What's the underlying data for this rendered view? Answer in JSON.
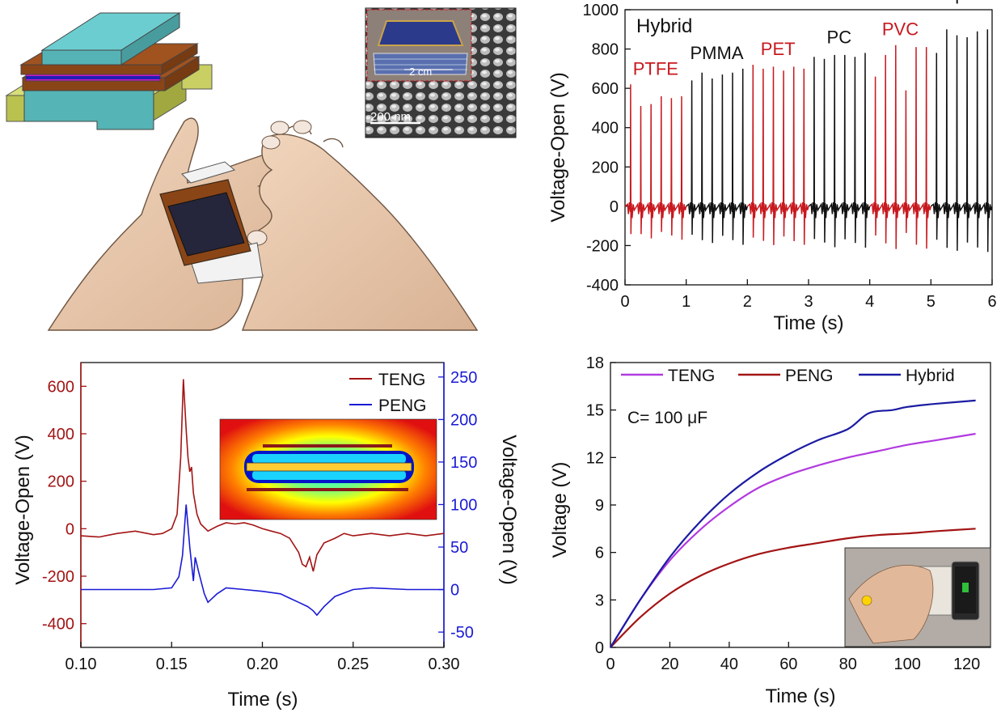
{
  "figure": "energy-harvester-composite",
  "colors": {
    "red": "#c8191f",
    "blue": "#1a1ad6",
    "black": "#111111",
    "purple": "#b23adf",
    "darkred": "#a31414",
    "navy": "#1b1ba3"
  },
  "illustration": {
    "sem_inset": {
      "scale_text": "200 nm",
      "photo_scale_text": "2 cm"
    }
  },
  "chart_data": [
    {
      "id": "hybrid-voltage",
      "type": "line",
      "title": "",
      "xlabel": "Time (s)",
      "ylabel": "Voltage-Open (V)",
      "xlim": [
        0,
        6
      ],
      "ylim": [
        -400,
        1000
      ],
      "xticks": [
        0,
        1,
        2,
        3,
        4,
        5,
        6
      ],
      "yticks": [
        -400,
        -200,
        0,
        200,
        400,
        600,
        800,
        1000
      ],
      "annotation": "Hybrid",
      "segments": [
        {
          "material": "PTFE",
          "color": "red",
          "start": 0.0,
          "end": 1.0,
          "peaks": [
            620,
            510,
            520,
            560,
            550,
            560
          ]
        },
        {
          "material": "PMMA",
          "color": "black",
          "start": 1.0,
          "end": 2.0,
          "peaks": [
            640,
            680,
            650,
            670,
            680,
            700
          ]
        },
        {
          "material": "PET",
          "color": "red",
          "start": 2.0,
          "end": 3.0,
          "peaks": [
            720,
            700,
            710,
            690,
            710,
            700
          ]
        },
        {
          "material": "PC",
          "color": "black",
          "start": 3.0,
          "end": 4.0,
          "peaks": [
            760,
            750,
            770,
            770,
            760,
            780
          ]
        },
        {
          "material": "PVC",
          "color": "red",
          "start": 4.0,
          "end": 5.0,
          "peaks": [
            660,
            770,
            820,
            590,
            810,
            810
          ]
        },
        {
          "material": "Kapton",
          "color": "black",
          "start": 5.0,
          "end": 6.0,
          "peaks": [
            780,
            900,
            870,
            860,
            890,
            900
          ]
        }
      ]
    },
    {
      "id": "teng-peng-dual-axis",
      "type": "line",
      "xlabel": "Time (s)",
      "ylabel_left": "Voltage-Open (V)",
      "ylabel_right": "Voltage-Open (V)",
      "xlim": [
        0.1,
        0.3
      ],
      "ylim_left": [
        -500,
        700
      ],
      "ylim_right": [
        -68,
        267
      ],
      "xticks": [
        "0.10",
        "0.15",
        "0.20",
        "0.25",
        "0.30"
      ],
      "yticks_left": [
        -400,
        -200,
        0,
        200,
        400,
        600
      ],
      "yticks_right": [
        -50,
        0,
        50,
        100,
        150,
        200,
        250
      ],
      "legend": [
        "TENG",
        "PENG"
      ],
      "legend_position": "top-right",
      "series": [
        {
          "name": "TENG",
          "axis": "left",
          "color": "darkred",
          "x": [
            0.1,
            0.11,
            0.12,
            0.13,
            0.14,
            0.145,
            0.15,
            0.153,
            0.155,
            0.1565,
            0.158,
            0.159,
            0.16,
            0.161,
            0.162,
            0.164,
            0.166,
            0.17,
            0.175,
            0.18,
            0.185,
            0.19,
            0.195,
            0.2,
            0.205,
            0.21,
            0.215,
            0.22,
            0.222,
            0.224,
            0.226,
            0.228,
            0.23,
            0.234,
            0.24,
            0.245,
            0.25,
            0.26,
            0.27,
            0.28,
            0.29,
            0.3
          ],
          "y": [
            -30,
            -35,
            -20,
            -10,
            -25,
            -20,
            0,
            60,
            300,
            630,
            420,
            300,
            240,
            260,
            150,
            60,
            20,
            -10,
            10,
            25,
            20,
            25,
            15,
            0,
            -10,
            -20,
            -40,
            -100,
            -150,
            -160,
            -120,
            -180,
            -110,
            -60,
            -40,
            -20,
            -30,
            -20,
            -30,
            -20,
            -30,
            -20
          ]
        },
        {
          "name": "PENG",
          "axis": "right",
          "color": "blue",
          "x": [
            0.1,
            0.12,
            0.14,
            0.15,
            0.154,
            0.156,
            0.158,
            0.16,
            0.162,
            0.163,
            0.165,
            0.168,
            0.17,
            0.175,
            0.18,
            0.19,
            0.2,
            0.21,
            0.215,
            0.22,
            0.225,
            0.228,
            0.23,
            0.234,
            0.24,
            0.25,
            0.26,
            0.28,
            0.3
          ],
          "y": [
            0,
            0,
            0,
            2,
            15,
            40,
            100,
            50,
            10,
            38,
            20,
            -5,
            -15,
            -5,
            2,
            0,
            -2,
            -5,
            -10,
            -15,
            -20,
            -25,
            -30,
            -20,
            -8,
            0,
            2,
            0,
            0
          ]
        }
      ],
      "inset": "simulated potential distribution"
    },
    {
      "id": "capacitor-charging",
      "type": "line",
      "xlabel": "Time (s)",
      "ylabel": "Voltage (V)",
      "xlim": [
        0,
        128
      ],
      "ylim": [
        0,
        18
      ],
      "xticks": [
        0,
        20,
        40,
        60,
        80,
        100,
        120
      ],
      "yticks": [
        0,
        3,
        6,
        9,
        12,
        15,
        18
      ],
      "annotation": "C= 100 μF",
      "legend": [
        "TENG",
        "PENG",
        "Hybrid"
      ],
      "legend_position": "top",
      "series": [
        {
          "name": "TENG",
          "color": "purple",
          "x": [
            0,
            10,
            20,
            30,
            40,
            50,
            60,
            70,
            80,
            90,
            100,
            110,
            123
          ],
          "y": [
            0,
            3.0,
            5.5,
            7.4,
            8.9,
            10.1,
            10.9,
            11.5,
            12.0,
            12.4,
            12.8,
            13.1,
            13.5
          ]
        },
        {
          "name": "PENG",
          "color": "darkred",
          "x": [
            0,
            10,
            20,
            30,
            40,
            50,
            60,
            70,
            80,
            90,
            100,
            110,
            123
          ],
          "y": [
            0,
            1.9,
            3.4,
            4.5,
            5.3,
            5.9,
            6.3,
            6.6,
            6.9,
            7.1,
            7.2,
            7.35,
            7.5
          ]
        },
        {
          "name": "Hybrid",
          "color": "navy",
          "x": [
            0,
            10,
            20,
            30,
            40,
            50,
            60,
            70,
            80,
            87,
            95,
            100,
            110,
            123
          ],
          "y": [
            0,
            3.0,
            5.7,
            7.9,
            9.7,
            11.1,
            12.2,
            13.1,
            13.8,
            14.8,
            15.0,
            15.2,
            15.4,
            15.6
          ]
        }
      ],
      "inset": "photo of hand-held charging demonstration"
    }
  ]
}
